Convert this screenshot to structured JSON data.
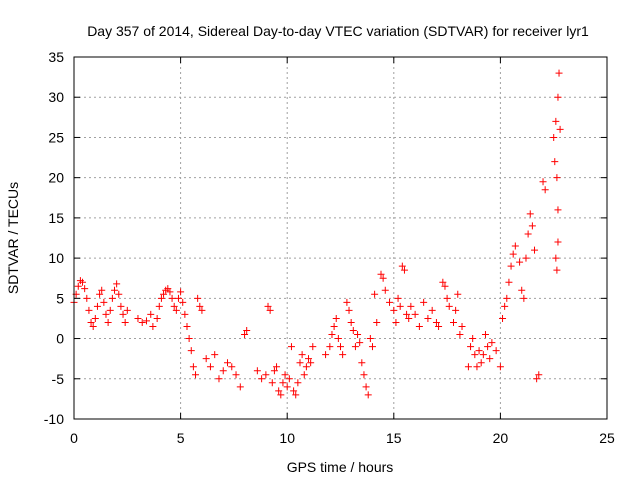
{
  "chart_data": {
    "type": "scatter",
    "title": "Day 357 of 2014, Sidereal Day-to-day VTEC variation (SDTVAR) for receiver lyr1",
    "xlabel": "GPS time / hours",
    "ylabel": "SDTVAR / TECUs",
    "xlim": [
      0,
      25
    ],
    "ylim": [
      -10,
      35
    ],
    "x_ticks": [
      0,
      5,
      10,
      15,
      20,
      25
    ],
    "y_ticks": [
      -10,
      -5,
      0,
      5,
      10,
      15,
      20,
      25,
      30,
      35
    ],
    "x_tick_labels": [
      "0",
      "5",
      "10",
      "15",
      "20",
      "25"
    ],
    "y_tick_labels": [
      "-10",
      "-5",
      "0",
      "5",
      "10",
      "15",
      "20",
      "25",
      "30",
      "35"
    ],
    "grid": true,
    "marker": "+",
    "series_color": "#ff0000",
    "series": [
      {
        "name": "SDTVAR",
        "points": [
          [
            0.0,
            4.5
          ],
          [
            0.1,
            5.5
          ],
          [
            0.2,
            6.5
          ],
          [
            0.3,
            7.2
          ],
          [
            0.4,
            7.0
          ],
          [
            0.5,
            6.2
          ],
          [
            0.6,
            5.0
          ],
          [
            0.7,
            3.5
          ],
          [
            0.8,
            2.0
          ],
          [
            0.9,
            1.5
          ],
          [
            1.0,
            2.5
          ],
          [
            1.1,
            4.0
          ],
          [
            1.2,
            5.5
          ],
          [
            1.3,
            6.0
          ],
          [
            1.4,
            4.5
          ],
          [
            1.5,
            3.0
          ],
          [
            1.6,
            2.0
          ],
          [
            1.7,
            3.5
          ],
          [
            1.8,
            5.0
          ],
          [
            1.9,
            6.0
          ],
          [
            2.0,
            6.8
          ],
          [
            2.1,
            5.5
          ],
          [
            2.2,
            4.0
          ],
          [
            2.3,
            3.0
          ],
          [
            2.4,
            2.0
          ],
          [
            2.5,
            3.5
          ],
          [
            3.0,
            2.5
          ],
          [
            3.2,
            2.0
          ],
          [
            3.4,
            2.2
          ],
          [
            3.6,
            3.0
          ],
          [
            3.7,
            1.5
          ],
          [
            3.9,
            2.5
          ],
          [
            4.0,
            4.0
          ],
          [
            4.1,
            5.0
          ],
          [
            4.2,
            5.5
          ],
          [
            4.3,
            6.0
          ],
          [
            4.4,
            6.2
          ],
          [
            4.5,
            5.8
          ],
          [
            4.6,
            5.0
          ],
          [
            4.7,
            4.0
          ],
          [
            4.8,
            3.5
          ],
          [
            4.9,
            5.0
          ],
          [
            5.0,
            5.8
          ],
          [
            5.1,
            4.5
          ],
          [
            5.2,
            3.0
          ],
          [
            5.3,
            1.5
          ],
          [
            5.4,
            0.0
          ],
          [
            5.5,
            -1.5
          ],
          [
            5.6,
            -3.5
          ],
          [
            5.7,
            -4.5
          ],
          [
            5.8,
            5.0
          ],
          [
            5.9,
            4.0
          ],
          [
            6.0,
            3.5
          ],
          [
            6.2,
            -2.5
          ],
          [
            6.4,
            -3.5
          ],
          [
            6.6,
            -2.0
          ],
          [
            6.8,
            -5.0
          ],
          [
            7.0,
            -4.0
          ],
          [
            7.2,
            -3.0
          ],
          [
            7.4,
            -3.5
          ],
          [
            7.6,
            -4.5
          ],
          [
            7.8,
            -6.0
          ],
          [
            8.0,
            0.5
          ],
          [
            8.1,
            1.0
          ],
          [
            8.6,
            -4.0
          ],
          [
            8.8,
            -5.0
          ],
          [
            9.0,
            -4.5
          ],
          [
            9.1,
            4.0
          ],
          [
            9.2,
            3.5
          ],
          [
            9.3,
            -5.5
          ],
          [
            9.4,
            -4.0
          ],
          [
            9.5,
            -3.5
          ],
          [
            9.6,
            -6.5
          ],
          [
            9.7,
            -7.0
          ],
          [
            9.8,
            -5.5
          ],
          [
            9.9,
            -4.5
          ],
          [
            10.0,
            -6.0
          ],
          [
            10.1,
            -5.0
          ],
          [
            10.2,
            -1.0
          ],
          [
            10.3,
            -6.5
          ],
          [
            10.4,
            -7.0
          ],
          [
            10.5,
            -5.5
          ],
          [
            10.6,
            -3.0
          ],
          [
            10.7,
            -2.0
          ],
          [
            10.8,
            -4.5
          ],
          [
            10.9,
            -3.5
          ],
          [
            11.0,
            -2.5
          ],
          [
            11.1,
            -3.0
          ],
          [
            11.2,
            -1.0
          ],
          [
            11.8,
            -2.0
          ],
          [
            12.0,
            -1.0
          ],
          [
            12.1,
            0.5
          ],
          [
            12.2,
            1.5
          ],
          [
            12.3,
            2.5
          ],
          [
            12.4,
            0.0
          ],
          [
            12.5,
            -1.0
          ],
          [
            12.6,
            -2.0
          ],
          [
            12.8,
            4.5
          ],
          [
            12.9,
            3.5
          ],
          [
            13.0,
            2.0
          ],
          [
            13.1,
            1.0
          ],
          [
            13.2,
            -1.0
          ],
          [
            13.3,
            0.5
          ],
          [
            13.4,
            -0.5
          ],
          [
            13.5,
            -3.0
          ],
          [
            13.6,
            -4.5
          ],
          [
            13.7,
            -6.0
          ],
          [
            13.8,
            -7.0
          ],
          [
            13.9,
            0.0
          ],
          [
            14.0,
            -1.0
          ],
          [
            14.1,
            5.5
          ],
          [
            14.2,
            2.0
          ],
          [
            14.4,
            8.0
          ],
          [
            14.5,
            7.5
          ],
          [
            14.6,
            6.0
          ],
          [
            14.8,
            4.5
          ],
          [
            15.0,
            3.5
          ],
          [
            15.1,
            2.0
          ],
          [
            15.2,
            5.0
          ],
          [
            15.3,
            4.0
          ],
          [
            15.4,
            9.0
          ],
          [
            15.5,
            8.5
          ],
          [
            15.6,
            3.0
          ],
          [
            15.7,
            2.5
          ],
          [
            15.8,
            4.0
          ],
          [
            16.0,
            3.0
          ],
          [
            16.2,
            1.5
          ],
          [
            16.4,
            4.5
          ],
          [
            16.6,
            2.5
          ],
          [
            16.8,
            3.5
          ],
          [
            17.0,
            2.0
          ],
          [
            17.1,
            1.5
          ],
          [
            17.3,
            7.0
          ],
          [
            17.4,
            6.5
          ],
          [
            17.5,
            5.0
          ],
          [
            17.6,
            4.0
          ],
          [
            17.8,
            2.0
          ],
          [
            17.9,
            3.5
          ],
          [
            18.0,
            5.5
          ],
          [
            18.1,
            0.5
          ],
          [
            18.2,
            1.5
          ],
          [
            18.5,
            -3.5
          ],
          [
            18.6,
            -1.0
          ],
          [
            18.7,
            0.0
          ],
          [
            18.8,
            -2.0
          ],
          [
            18.9,
            -3.5
          ],
          [
            19.0,
            -1.5
          ],
          [
            19.1,
            -3.0
          ],
          [
            19.2,
            -2.0
          ],
          [
            19.3,
            0.5
          ],
          [
            19.4,
            -1.0
          ],
          [
            19.5,
            -2.5
          ],
          [
            19.6,
            -0.5
          ],
          [
            19.8,
            -1.5
          ],
          [
            20.0,
            -3.5
          ],
          [
            20.1,
            2.5
          ],
          [
            20.2,
            4.0
          ],
          [
            20.3,
            5.0
          ],
          [
            20.4,
            7.0
          ],
          [
            20.5,
            9.0
          ],
          [
            20.6,
            10.5
          ],
          [
            20.7,
            11.5
          ],
          [
            20.9,
            9.5
          ],
          [
            21.0,
            6.0
          ],
          [
            21.1,
            5.0
          ],
          [
            21.2,
            10.0
          ],
          [
            21.3,
            13.0
          ],
          [
            21.4,
            15.5
          ],
          [
            21.5,
            14.0
          ],
          [
            21.6,
            11.0
          ],
          [
            21.7,
            -5.0
          ],
          [
            21.8,
            -4.5
          ],
          [
            22.0,
            19.5
          ],
          [
            22.1,
            18.5
          ],
          [
            22.5,
            25.0
          ],
          [
            22.55,
            22.0
          ],
          [
            22.6,
            27.0
          ],
          [
            22.65,
            20.0
          ],
          [
            22.7,
            30.0
          ],
          [
            22.75,
            33.0
          ],
          [
            22.8,
            26.0
          ],
          [
            22.6,
            10.0
          ],
          [
            22.7,
            12.0
          ],
          [
            22.65,
            8.5
          ],
          [
            22.7,
            16.0
          ]
        ]
      }
    ]
  }
}
